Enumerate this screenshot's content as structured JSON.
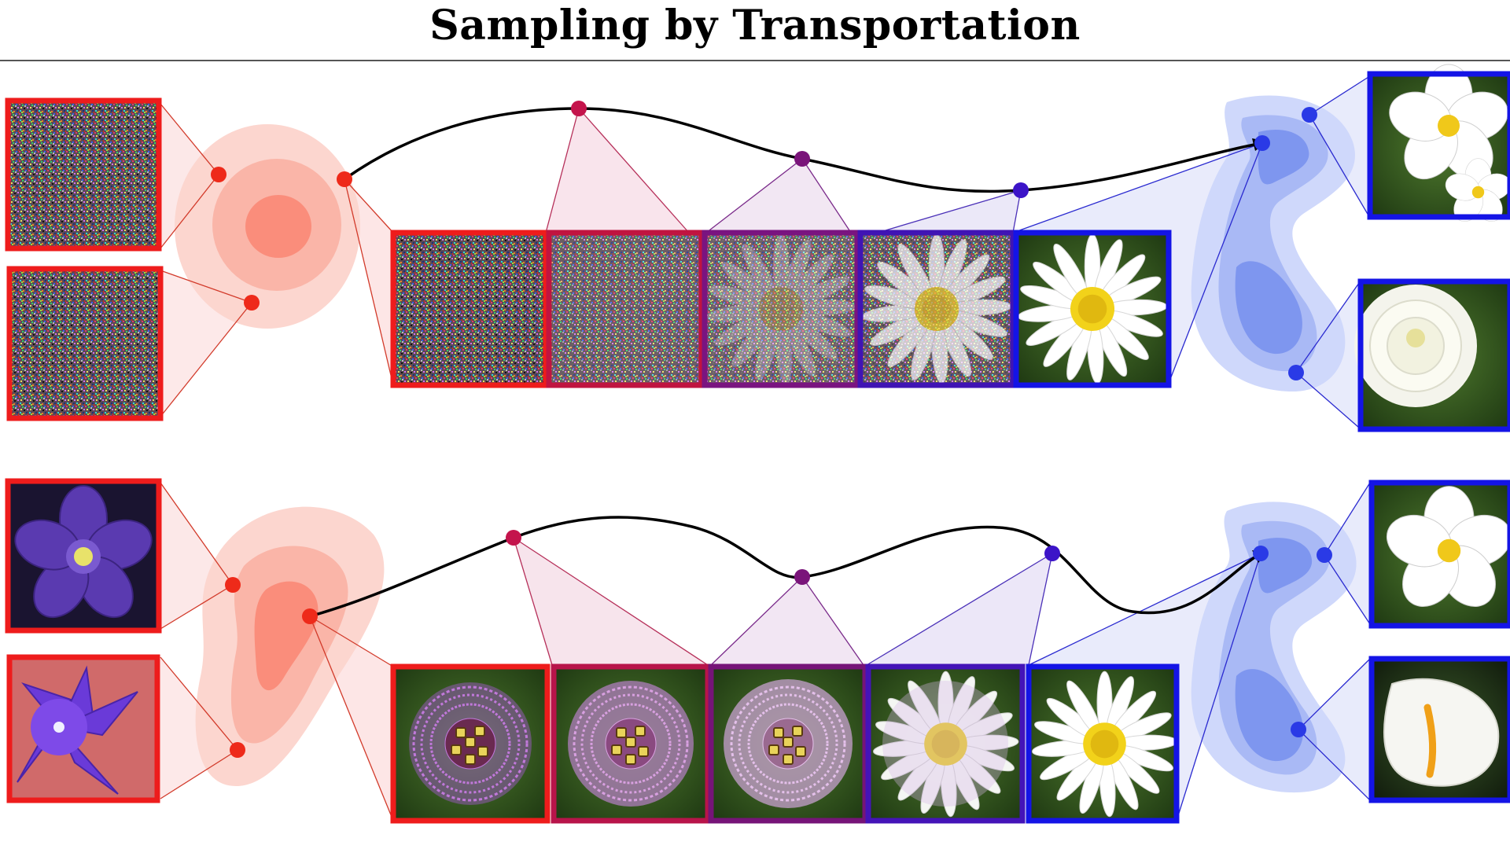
{
  "title": "Sampling by Transportation",
  "colors": {
    "source": "#ee1c1c",
    "target": "#1414e6",
    "path": "#000000",
    "source_blob": "#fa8a78",
    "target_blob": "#7d95f0"
  },
  "rows": [
    {
      "name": "noise-to-flowers",
      "source_images": [
        "rgb-noise",
        "rgb-noise"
      ],
      "path_images": [
        "noise",
        "noise",
        "faint-daisy-in-noise",
        "noisy-daisy",
        "white-daisy"
      ],
      "target_images": [
        "white-jasmine-flowers",
        "white-chrysanthemum"
      ]
    },
    {
      "name": "flowers-to-flowers",
      "source_images": [
        "purple-columbine-flower",
        "purple-bellflower"
      ],
      "path_images": [
        "purple-passion-flower",
        "faded-passion-flower",
        "pale-passion-flower",
        "pale-daisy",
        "white-daisy"
      ],
      "target_images": [
        "white-trillium",
        "white-calla-lily"
      ]
    }
  ]
}
